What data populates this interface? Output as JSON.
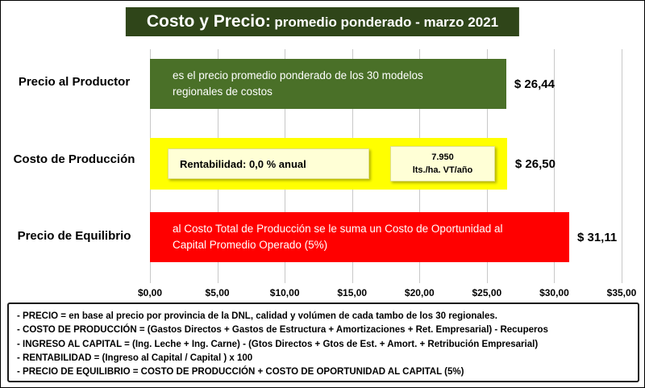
{
  "title": {
    "main": "Costo  y Precio:",
    "sub": "promedio ponderado - marzo 2021"
  },
  "colors": {
    "title_bg": "#2f4519",
    "green_bar": "#4a7028",
    "yellow_bar": "#ffff00",
    "pale_yellow_box": "#ffffd6",
    "red_bar": "#ff0000",
    "gridline": "#c8c8c8"
  },
  "chart_data": {
    "type": "bar",
    "orientation": "horizontal",
    "title": "Costo  y Precio: promedio ponderado - marzo 2021",
    "categories": [
      "Precio al Productor",
      "Costo de Producción",
      "Precio de Equilibrio"
    ],
    "values": [
      26.44,
      26.5,
      31.11
    ],
    "value_labels": [
      "$ 26,44",
      "$ 26,50",
      "$ 31,11"
    ],
    "xlim": [
      0,
      35
    ],
    "x_ticks": [
      "$0,00",
      "$5,00",
      "$10,00",
      "$15,00",
      "$20,00",
      "$25,00",
      "$30,00",
      "$35,00"
    ],
    "grid": true,
    "legend": "none",
    "annotations": {
      "green_bar_text": "es el precio promedio ponderado de los 30 modelos regionales de costos",
      "rentabilidad_box": "Rentabilidad: 0,0 % anual",
      "productivity_box_line1": "7.950",
      "productivity_box_line2": "lts./ha. VT/año",
      "red_bar_text": "al Costo Total de Producción se le suma un Costo de Oportunidad al Capital Promedio Operado (5%)"
    }
  },
  "footnotes": [
    "- PRECIO = en base al precio por provincia de la DNL, calidad y volúmen de cada tambo de los 30 regionales.",
    "- COSTO DE PRODUCCIÓN = (Gastos Directos + Gastos de Estructura + Amortizaciones + Ret. Empresarial) - Recuperos",
    "- INGRESO AL CAPITAL = (Ing. Leche + Ing. Carne) - (Gtos Directos + Gtos de Est. + Amort. + Retribución Empresarial)",
    "- RENTABILIDAD = (Ingreso al Capital / Capital ) x 100",
    "- PRECIO DE EQUILIBRIO = COSTO DE PRODUCCIÓN + COSTO DE OPORTUNIDAD AL CAPITAL (5%)"
  ]
}
